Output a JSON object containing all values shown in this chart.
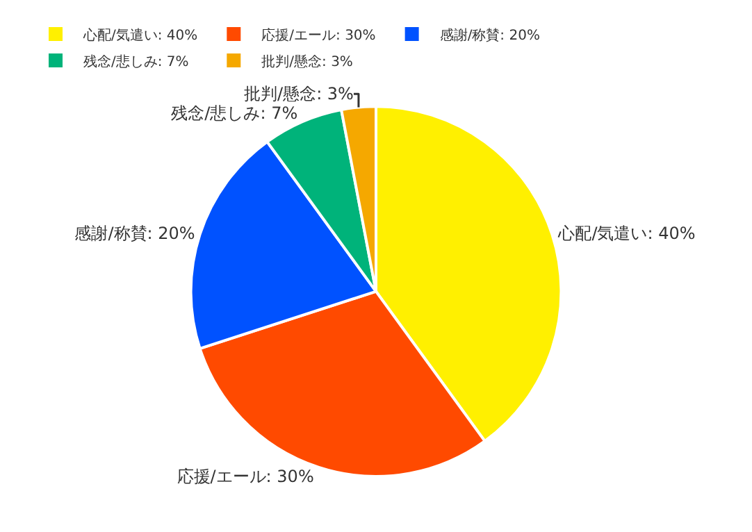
{
  "chart_data": {
    "type": "pie",
    "categories": [
      "心配/気遣い: 40%",
      "応援/エール: 30%",
      "感謝/称賛: 20%",
      "残念/悲しみ: 7%",
      "批判/懸念: 3%"
    ],
    "values": [
      40,
      30,
      20,
      7,
      3
    ],
    "colors": [
      "#fff000",
      "#ff4a00",
      "#0052ff",
      "#00b37a",
      "#f5a800"
    ],
    "legend": "top left"
  }
}
